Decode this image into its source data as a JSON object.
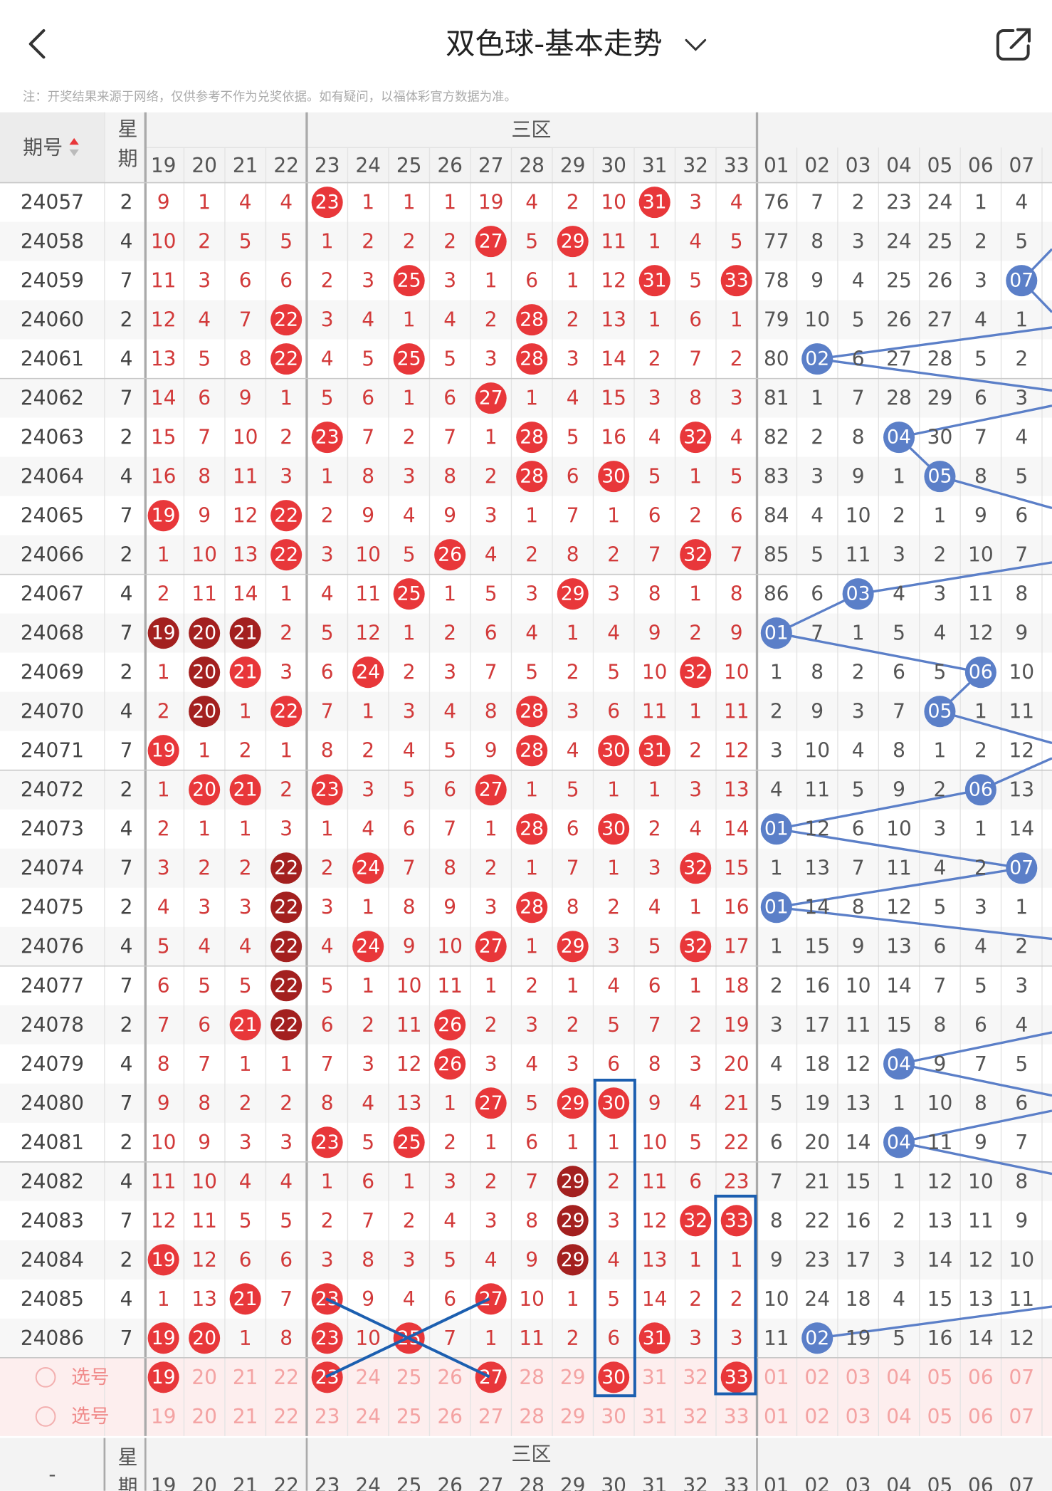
{
  "header": {
    "title": "双色球-基本走势"
  },
  "note": "注：开奖结果来源于网络，仅供参考不作为兑奖依据。如有疑问，以福体彩官方数据为准。",
  "table": {
    "col_issue": "期号",
    "col_week": "星期",
    "zone_label": "三区",
    "bottom_issue": "-",
    "red_columns": [
      "19",
      "20",
      "21",
      "22",
      "23",
      "24",
      "25",
      "26",
      "27",
      "28",
      "29",
      "30",
      "31",
      "32",
      "33"
    ],
    "blue_columns": [
      "01",
      "02",
      "03",
      "04",
      "05",
      "06",
      "07"
    ],
    "rows": [
      {
        "issue": "24057",
        "week": "2",
        "red": [
          "9",
          "1",
          "4",
          "4",
          "23",
          "1",
          "1",
          "1",
          "19",
          "4",
          "2",
          "10",
          "31",
          "3",
          "4"
        ],
        "blue": [
          "76",
          "7",
          "2",
          "23",
          "24",
          "1",
          "4"
        ]
      },
      {
        "issue": "24058",
        "week": "4",
        "red": [
          "10",
          "2",
          "5",
          "5",
          "1",
          "2",
          "2",
          "2",
          "27",
          "5",
          "29",
          "11",
          "1",
          "4",
          "5"
        ],
        "blue": [
          "77",
          "8",
          "3",
          "24",
          "25",
          "2",
          "5"
        ]
      },
      {
        "issue": "24059",
        "week": "7",
        "red": [
          "11",
          "3",
          "6",
          "6",
          "2",
          "3",
          "25",
          "3",
          "1",
          "6",
          "1",
          "12",
          "31",
          "5",
          "33"
        ],
        "blue": [
          "78",
          "9",
          "4",
          "25",
          "26",
          "3",
          "07"
        ]
      },
      {
        "issue": "24060",
        "week": "2",
        "red": [
          "12",
          "4",
          "7",
          "22",
          "3",
          "4",
          "1",
          "4",
          "2",
          "28",
          "2",
          "13",
          "1",
          "6",
          "1"
        ],
        "blue": [
          "79",
          "10",
          "5",
          "26",
          "27",
          "4",
          "1"
        ]
      },
      {
        "issue": "24061",
        "week": "4",
        "red": [
          "13",
          "5",
          "8",
          "22",
          "4",
          "5",
          "25",
          "5",
          "3",
          "28",
          "3",
          "14",
          "2",
          "7",
          "2"
        ],
        "blue": [
          "80",
          "02",
          "6",
          "27",
          "28",
          "5",
          "2"
        ]
      },
      {
        "issue": "24062",
        "week": "7",
        "red": [
          "14",
          "6",
          "9",
          "1",
          "5",
          "6",
          "1",
          "6",
          "27",
          "1",
          "4",
          "15",
          "3",
          "8",
          "3"
        ],
        "blue": [
          "81",
          "1",
          "7",
          "28",
          "29",
          "6",
          "3"
        ]
      },
      {
        "issue": "24063",
        "week": "2",
        "red": [
          "15",
          "7",
          "10",
          "2",
          "23",
          "7",
          "2",
          "7",
          "1",
          "28",
          "5",
          "16",
          "4",
          "32",
          "4"
        ],
        "blue": [
          "82",
          "2",
          "8",
          "04",
          "30",
          "7",
          "4"
        ]
      },
      {
        "issue": "24064",
        "week": "4",
        "red": [
          "16",
          "8",
          "11",
          "3",
          "1",
          "8",
          "3",
          "8",
          "2",
          "28",
          "6",
          "30",
          "5",
          "1",
          "5"
        ],
        "blue": [
          "83",
          "3",
          "9",
          "1",
          "05",
          "8",
          "5"
        ]
      },
      {
        "issue": "24065",
        "week": "7",
        "red": [
          "19",
          "9",
          "12",
          "22",
          "2",
          "9",
          "4",
          "9",
          "3",
          "1",
          "7",
          "1",
          "6",
          "2",
          "6"
        ],
        "blue": [
          "84",
          "4",
          "10",
          "2",
          "1",
          "9",
          "6"
        ]
      },
      {
        "issue": "24066",
        "week": "2",
        "red": [
          "1",
          "10",
          "13",
          "22",
          "3",
          "10",
          "5",
          "26",
          "4",
          "2",
          "8",
          "2",
          "7",
          "32",
          "7"
        ],
        "blue": [
          "85",
          "5",
          "11",
          "3",
          "2",
          "10",
          "7"
        ]
      },
      {
        "issue": "24067",
        "week": "4",
        "red": [
          "2",
          "11",
          "14",
          "1",
          "4",
          "11",
          "25",
          "1",
          "5",
          "3",
          "29",
          "3",
          "8",
          "1",
          "8"
        ],
        "blue": [
          "86",
          "6",
          "03",
          "4",
          "3",
          "11",
          "8"
        ]
      },
      {
        "issue": "24068",
        "week": "7",
        "red": [
          "19",
          "20",
          "21",
          "2",
          "5",
          "12",
          "1",
          "2",
          "6",
          "4",
          "1",
          "4",
          "9",
          "2",
          "9"
        ],
        "blue": [
          "01",
          "7",
          "1",
          "5",
          "4",
          "12",
          "9"
        ]
      },
      {
        "issue": "24069",
        "week": "2",
        "red": [
          "1",
          "20",
          "21",
          "3",
          "6",
          "24",
          "2",
          "3",
          "7",
          "5",
          "2",
          "5",
          "10",
          "32",
          "10"
        ],
        "blue": [
          "1",
          "8",
          "2",
          "6",
          "5",
          "06",
          "10"
        ]
      },
      {
        "issue": "24070",
        "week": "4",
        "red": [
          "2",
          "20",
          "1",
          "22",
          "7",
          "1",
          "3",
          "4",
          "8",
          "28",
          "3",
          "6",
          "11",
          "1",
          "11"
        ],
        "blue": [
          "2",
          "9",
          "3",
          "7",
          "05",
          "1",
          "11"
        ]
      },
      {
        "issue": "24071",
        "week": "7",
        "red": [
          "19",
          "1",
          "2",
          "1",
          "8",
          "2",
          "4",
          "5",
          "9",
          "28",
          "4",
          "30",
          "31",
          "2",
          "12"
        ],
        "blue": [
          "3",
          "10",
          "4",
          "8",
          "1",
          "2",
          "12"
        ]
      },
      {
        "issue": "24072",
        "week": "2",
        "red": [
          "1",
          "20",
          "21",
          "2",
          "23",
          "3",
          "5",
          "6",
          "27",
          "1",
          "5",
          "1",
          "1",
          "3",
          "13"
        ],
        "blue": [
          "4",
          "11",
          "5",
          "9",
          "2",
          "06",
          "13"
        ]
      },
      {
        "issue": "24073",
        "week": "4",
        "red": [
          "2",
          "1",
          "1",
          "3",
          "1",
          "4",
          "6",
          "7",
          "1",
          "28",
          "6",
          "30",
          "2",
          "4",
          "14"
        ],
        "blue": [
          "01",
          "12",
          "6",
          "10",
          "3",
          "1",
          "14"
        ]
      },
      {
        "issue": "24074",
        "week": "7",
        "red": [
          "3",
          "2",
          "2",
          "22",
          "2",
          "24",
          "7",
          "8",
          "2",
          "1",
          "7",
          "1",
          "3",
          "32",
          "15"
        ],
        "blue": [
          "1",
          "13",
          "7",
          "11",
          "4",
          "2",
          "07"
        ]
      },
      {
        "issue": "24075",
        "week": "2",
        "red": [
          "4",
          "3",
          "3",
          "22",
          "3",
          "1",
          "8",
          "9",
          "3",
          "28",
          "8",
          "2",
          "4",
          "1",
          "16"
        ],
        "blue": [
          "01",
          "14",
          "8",
          "12",
          "5",
          "3",
          "1"
        ]
      },
      {
        "issue": "24076",
        "week": "4",
        "red": [
          "5",
          "4",
          "4",
          "22",
          "4",
          "24",
          "9",
          "10",
          "27",
          "1",
          "29",
          "3",
          "5",
          "32",
          "17"
        ],
        "blue": [
          "1",
          "15",
          "9",
          "13",
          "6",
          "4",
          "2"
        ]
      },
      {
        "issue": "24077",
        "week": "7",
        "red": [
          "6",
          "5",
          "5",
          "22",
          "5",
          "1",
          "10",
          "11",
          "1",
          "2",
          "1",
          "4",
          "6",
          "1",
          "18"
        ],
        "blue": [
          "2",
          "16",
          "10",
          "14",
          "7",
          "5",
          "3"
        ]
      },
      {
        "issue": "24078",
        "week": "2",
        "red": [
          "7",
          "6",
          "21",
          "22",
          "6",
          "2",
          "11",
          "26",
          "2",
          "3",
          "2",
          "5",
          "7",
          "2",
          "19"
        ],
        "blue": [
          "3",
          "17",
          "11",
          "15",
          "8",
          "6",
          "4"
        ]
      },
      {
        "issue": "24079",
        "week": "4",
        "red": [
          "8",
          "7",
          "1",
          "1",
          "7",
          "3",
          "12",
          "26",
          "3",
          "4",
          "3",
          "6",
          "8",
          "3",
          "20"
        ],
        "blue": [
          "4",
          "18",
          "12",
          "04",
          "9",
          "7",
          "5"
        ]
      },
      {
        "issue": "24080",
        "week": "7",
        "red": [
          "9",
          "8",
          "2",
          "2",
          "8",
          "4",
          "13",
          "1",
          "27",
          "5",
          "29",
          "30",
          "9",
          "4",
          "21"
        ],
        "blue": [
          "5",
          "19",
          "13",
          "1",
          "10",
          "8",
          "6"
        ]
      },
      {
        "issue": "24081",
        "week": "2",
        "red": [
          "10",
          "9",
          "3",
          "3",
          "23",
          "5",
          "25",
          "2",
          "1",
          "6",
          "1",
          "1",
          "10",
          "5",
          "22"
        ],
        "blue": [
          "6",
          "20",
          "14",
          "04",
          "11",
          "9",
          "7"
        ]
      },
      {
        "issue": "24082",
        "week": "4",
        "red": [
          "11",
          "10",
          "4",
          "4",
          "1",
          "6",
          "1",
          "3",
          "2",
          "7",
          "29",
          "2",
          "11",
          "6",
          "23"
        ],
        "blue": [
          "7",
          "21",
          "15",
          "1",
          "12",
          "10",
          "8"
        ]
      },
      {
        "issue": "24083",
        "week": "7",
        "red": [
          "12",
          "11",
          "5",
          "5",
          "2",
          "7",
          "2",
          "4",
          "3",
          "8",
          "29",
          "3",
          "12",
          "32",
          "33"
        ],
        "blue": [
          "8",
          "22",
          "16",
          "2",
          "13",
          "11",
          "9"
        ]
      },
      {
        "issue": "24084",
        "week": "2",
        "red": [
          "19",
          "12",
          "6",
          "6",
          "3",
          "8",
          "3",
          "5",
          "4",
          "9",
          "29",
          "4",
          "13",
          "1",
          "1"
        ],
        "blue": [
          "9",
          "23",
          "17",
          "3",
          "14",
          "12",
          "10"
        ]
      },
      {
        "issue": "24085",
        "week": "4",
        "red": [
          "1",
          "13",
          "21",
          "7",
          "23",
          "9",
          "4",
          "6",
          "27",
          "10",
          "1",
          "5",
          "14",
          "2",
          "2"
        ],
        "blue": [
          "10",
          "24",
          "18",
          "4",
          "15",
          "13",
          "11"
        ]
      },
      {
        "issue": "24086",
        "week": "7",
        "red": [
          "19",
          "20",
          "1",
          "8",
          "23",
          "10",
          "25",
          "7",
          "1",
          "11",
          "2",
          "6",
          "31",
          "3",
          "3"
        ],
        "blue": [
          "11",
          "02",
          "19",
          "5",
          "16",
          "14",
          "12"
        ]
      }
    ],
    "pick_rows": [
      {
        "label": "选号",
        "selected": [
          "19",
          "23",
          "27",
          "30",
          "33"
        ]
      },
      {
        "label": "选号",
        "selected": []
      }
    ]
  }
}
